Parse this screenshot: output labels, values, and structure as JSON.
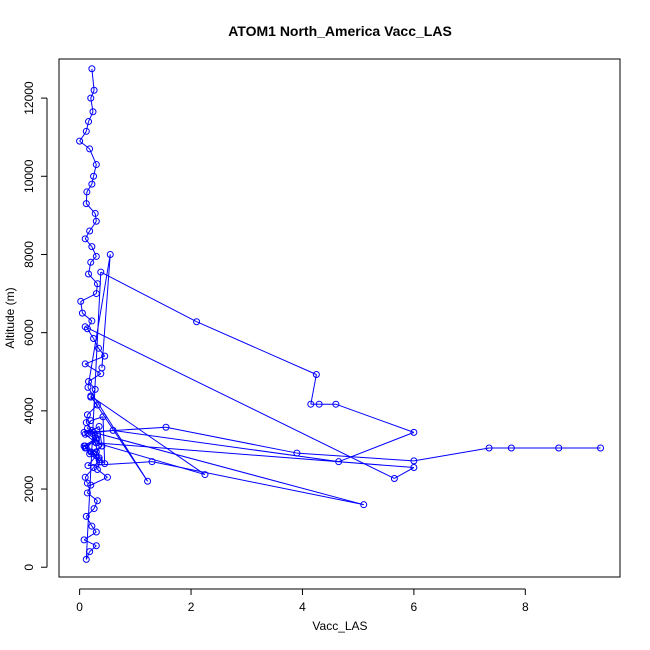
{
  "chart_data": {
    "type": "scatter",
    "title": "ATOM1 North_America Vacc_LAS",
    "xlabel": "Vacc_LAS",
    "ylabel": "Altitude (m)",
    "xlim": [
      -0.37,
      9.7
    ],
    "ylim": [
      -250,
      13000
    ],
    "xticks": [
      0,
      2,
      4,
      6,
      8
    ],
    "yticks": [
      0,
      2000,
      4000,
      6000,
      8000,
      10000,
      12000
    ],
    "grid": false,
    "color": "#0000ff",
    "marker": "open-circle",
    "connected": true,
    "series": [
      {
        "x": [
          0.22,
          0.26,
          0.2,
          0.24,
          0.16,
          0.12,
          0.0,
          0.18,
          0.3,
          0.25,
          0.22,
          0.13,
          0.12,
          0.28,
          0.3,
          0.18,
          0.1,
          0.22,
          0.3,
          0.2,
          0.16,
          0.32,
          0.3,
          0.02,
          0.05,
          0.22,
          0.14,
          0.25,
          0.34,
          0.45,
          0.1,
          0.38,
          0.16,
          0.28,
          0.2,
          0.32,
          0.14,
          0.12,
          0.22,
          0.3,
          0.08,
          0.25,
          0.36,
          0.32,
          0.5,
          0.2,
          0.14,
          0.32,
          0.26,
          0.12,
          0.22,
          0.3,
          0.08,
          0.3,
          0.18,
          0.12,
          0.38,
          2.1,
          4.25,
          4.15,
          4.3,
          4.6,
          6.0,
          4.65,
          0.6,
          0.15,
          0.3,
          0.4,
          0.3,
          0.1,
          0.3,
          0.15,
          1.3,
          5.1,
          0.25,
          0.3,
          0.12,
          0.18,
          0.4,
          0.35,
          0.1,
          0.28,
          0.35,
          0.45,
          0.42,
          0.2,
          0.14,
          0.32,
          0.3,
          0.1,
          0.2,
          0.35,
          0.25,
          0.1,
          0.14
        ],
        "y": [
          12750,
          12200,
          12000,
          11650,
          11400,
          11150,
          10900,
          10700,
          10300,
          10000,
          9800,
          9600,
          9300,
          9050,
          8850,
          8600,
          8400,
          8200,
          7950,
          7800,
          7500,
          7250,
          7000,
          6800,
          6500,
          6300,
          6100,
          5850,
          5600,
          5400,
          5200,
          4950,
          4750,
          4550,
          4350,
          4150,
          3900,
          3700,
          3500,
          3300,
          3100,
          2900,
          2700,
          2500,
          2300,
          2100,
          1900,
          1700,
          1500,
          1300,
          1050,
          900,
          700,
          550,
          400,
          200,
          7550,
          6280,
          4930,
          4170,
          4170,
          4170,
          3450,
          2700,
          3500,
          3420,
          3250,
          3100,
          2950,
          3050,
          2850,
          2600,
          2700,
          1600,
          3450,
          3300,
          3050,
          2900,
          3100,
          3600,
          3400,
          3200,
          2800,
          2650,
          3850,
          3750,
          3550,
          3400,
          3250,
          3100,
          2950,
          2750,
          2550,
          2300,
          2150
        ]
      },
      {
        "x": [
          0.08,
          1.55,
          3.9,
          6.0,
          7.35,
          7.75,
          8.6,
          9.35
        ],
        "y": [
          3450,
          3580,
          2920,
          2720,
          3050,
          3050,
          3050,
          3050
        ]
      },
      {
        "x": [
          0.1,
          5.65,
          6.0,
          0.3,
          2.25,
          0.2,
          1.22,
          0.15,
          0.55,
          0.4
        ],
        "y": [
          6150,
          2270,
          2550,
          3180,
          2370,
          4380,
          2200,
          4600,
          8000,
          5100
        ]
      }
    ]
  }
}
